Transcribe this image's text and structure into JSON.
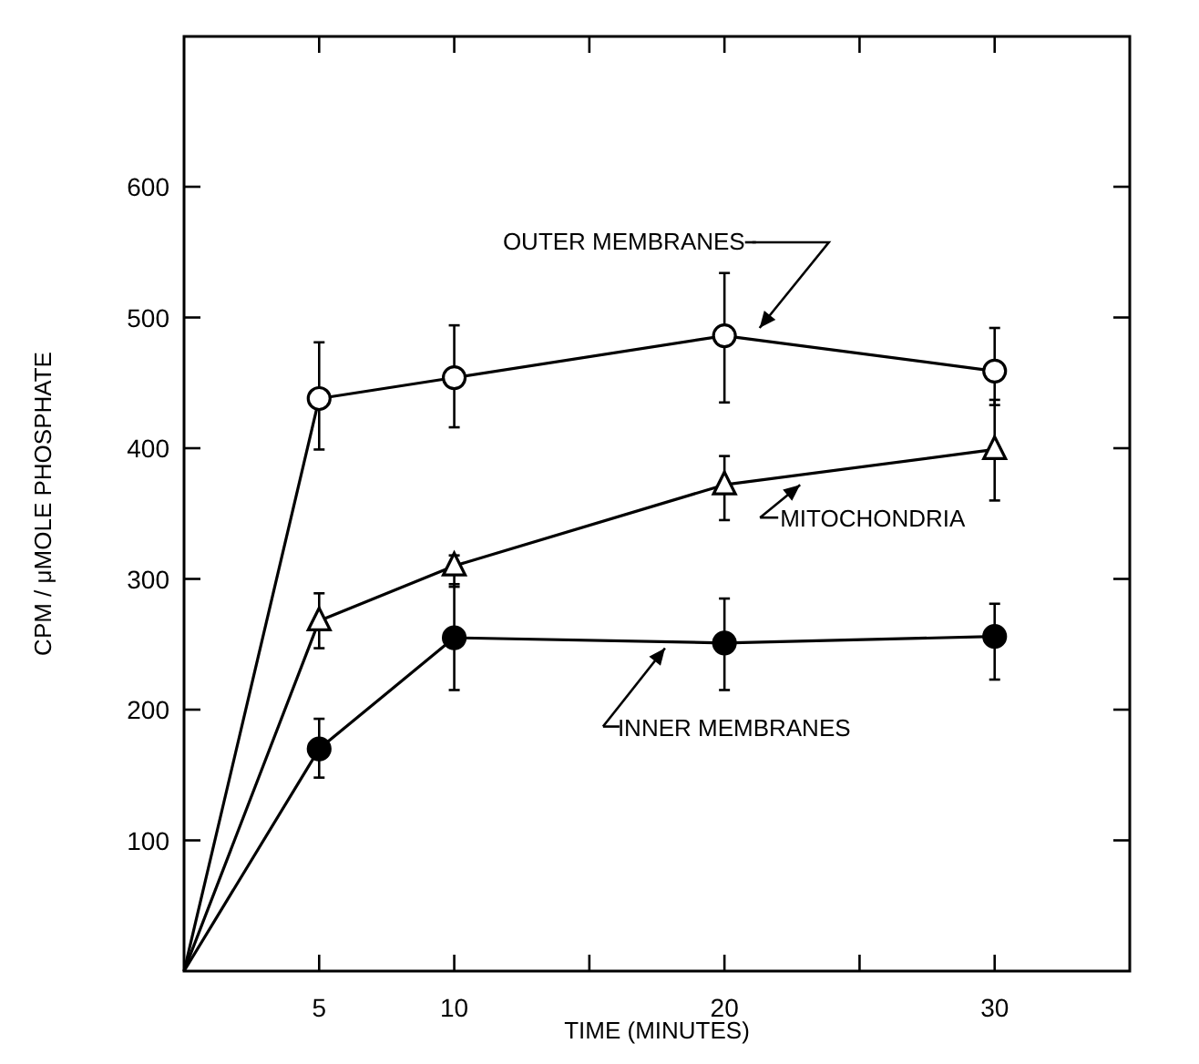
{
  "chart_data": {
    "type": "line",
    "xlabel": "TIME (MINUTES)",
    "ylabel": "CPM / μMOLE PHOSPHATE",
    "x": [
      0,
      5,
      10,
      20,
      30
    ],
    "xlim": [
      0,
      35
    ],
    "xticks": [
      5,
      10,
      {
        "value": 15,
        "label": null
      },
      20,
      {
        "value": 25,
        "label": null
      },
      30
    ],
    "ylim": [
      0,
      715
    ],
    "yticks": [
      100,
      200,
      300,
      400,
      500,
      600
    ],
    "grid": false,
    "legend": "right",
    "line_style": "solid",
    "series": [
      {
        "name": "OUTER MEMBRANES",
        "color": "#000000",
        "marker": "circle",
        "values": [
          0,
          438,
          454,
          486,
          459
        ],
        "errors": [
          null,
          [
            399,
            481
          ],
          [
            416,
            494
          ],
          [
            435,
            534
          ],
          [
            433,
            492
          ]
        ]
      },
      {
        "name": "MITOCHONDRIA",
        "color": "#000000",
        "marker": "triangle",
        "values": [
          0,
          268,
          310,
          372,
          399
        ],
        "errors": [
          null,
          [
            247,
            289
          ],
          [
            294,
            318
          ],
          [
            345,
            394
          ],
          [
            360,
            437
          ]
        ]
      },
      {
        "name": "INNER MEMBRANES",
        "color": "#000000",
        "marker": "circle",
        "values": [
          0,
          170,
          255,
          251,
          256
        ],
        "errors": [
          null,
          [
            148,
            193
          ],
          [
            215,
            296
          ],
          [
            215,
            285
          ],
          [
            223,
            281
          ]
        ]
      }
    ]
  }
}
